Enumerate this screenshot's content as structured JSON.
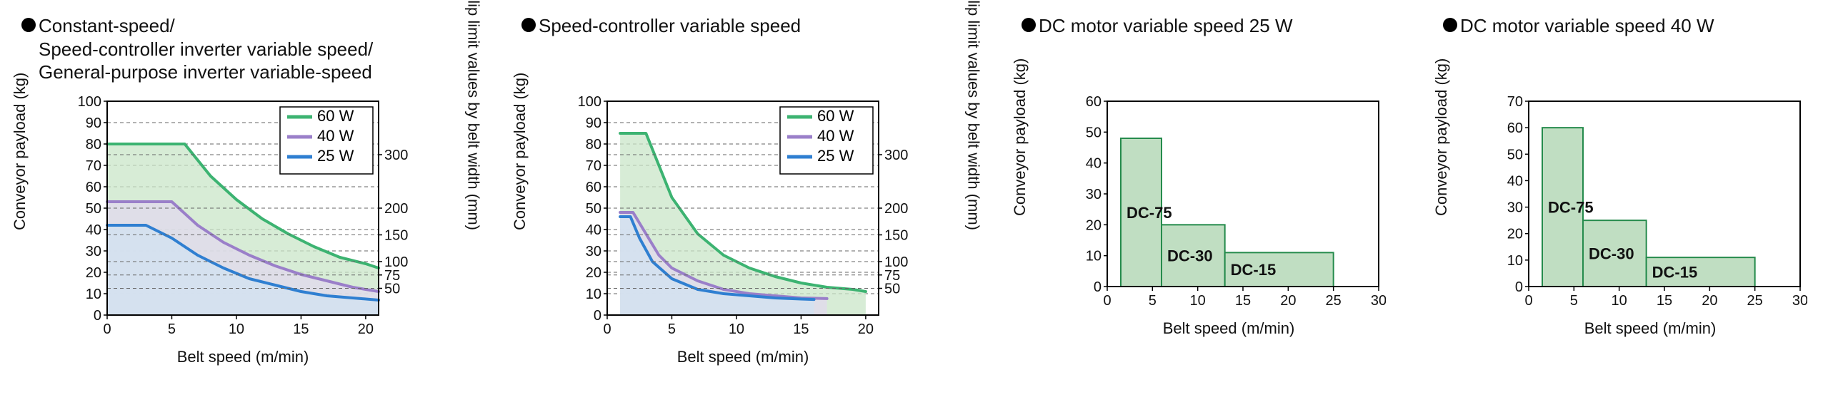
{
  "colors": {
    "series60": "#3cb371",
    "series40": "#9a7fc9",
    "series25": "#2f7fd1",
    "fill60": "#c9e6c8",
    "fill40": "#e1d9ee",
    "fill25": "#d2e2f1",
    "barFill": "#c0dec2",
    "barStroke": "#258b4c",
    "grid": "#333333",
    "gridDash": "#666666",
    "frame": "#000000",
    "bg": "#ffffff"
  },
  "commonAxes": {
    "xLabel": "Belt speed (m/min)",
    "yLabel": "Conveyor payload (kg)",
    "y2Label": "Slip limit values by belt width (mm)"
  },
  "panelA": {
    "title": "Constant-speed/\nSpeed-controller inverter variable speed/\nGeneral-purpose inverter variable-speed",
    "xlim": [
      0,
      21
    ],
    "xticks": [
      0,
      5,
      10,
      15,
      20
    ],
    "ylim": [
      0,
      100
    ],
    "yticks": [
      0,
      10,
      20,
      30,
      40,
      50,
      60,
      70,
      80,
      90,
      100
    ],
    "y2ticks": [
      50,
      75,
      100,
      150,
      200,
      300
    ],
    "y2map": {
      "50": 12.5,
      "75": 18.75,
      "100": 25,
      "150": 37.5,
      "200": 50,
      "300": 75
    },
    "legend": [
      {
        "label": "60 W",
        "color": "series60"
      },
      {
        "label": "40 W",
        "color": "series40"
      },
      {
        "label": "25 W",
        "color": "series25"
      }
    ],
    "series": [
      {
        "color": "series60",
        "fill": "fill60",
        "pts": [
          [
            0,
            80
          ],
          [
            6,
            80
          ],
          [
            8,
            65
          ],
          [
            10,
            54
          ],
          [
            12,
            45
          ],
          [
            14,
            38
          ],
          [
            16,
            32
          ],
          [
            18,
            27
          ],
          [
            20,
            24
          ],
          [
            21,
            22
          ]
        ]
      },
      {
        "color": "series40",
        "fill": "fill40",
        "pts": [
          [
            0,
            53
          ],
          [
            5,
            53
          ],
          [
            7,
            42
          ],
          [
            9,
            34
          ],
          [
            11,
            28
          ],
          [
            13,
            23
          ],
          [
            15,
            19
          ],
          [
            17,
            16
          ],
          [
            19,
            13
          ],
          [
            21,
            11
          ]
        ]
      },
      {
        "color": "series25",
        "fill": "fill25",
        "pts": [
          [
            0,
            42
          ],
          [
            3,
            42
          ],
          [
            5,
            36
          ],
          [
            7,
            28
          ],
          [
            9,
            22
          ],
          [
            11,
            17
          ],
          [
            13,
            14
          ],
          [
            15,
            11
          ],
          [
            17,
            9
          ],
          [
            19,
            8
          ],
          [
            21,
            7
          ]
        ]
      }
    ],
    "plotW": 380,
    "plotH": 300
  },
  "panelB": {
    "title": "Speed-controller variable speed",
    "xlim": [
      0,
      21
    ],
    "xticks": [
      0,
      5,
      10,
      15,
      20
    ],
    "ylim": [
      0,
      100
    ],
    "yticks": [
      0,
      10,
      20,
      30,
      40,
      50,
      60,
      70,
      80,
      90,
      100
    ],
    "y2ticks": [
      50,
      75,
      100,
      150,
      200,
      300
    ],
    "y2map": {
      "50": 12.5,
      "75": 18.75,
      "100": 25,
      "150": 37.5,
      "200": 50,
      "300": 75
    },
    "legend": [
      {
        "label": "60 W",
        "color": "series60"
      },
      {
        "label": "40 W",
        "color": "series40"
      },
      {
        "label": "25 W",
        "color": "series25"
      }
    ],
    "series": [
      {
        "color": "series60",
        "fill": "fill60",
        "pts": [
          [
            1,
            85
          ],
          [
            3,
            85
          ],
          [
            5,
            55
          ],
          [
            7,
            38
          ],
          [
            9,
            28
          ],
          [
            11,
            22
          ],
          [
            13,
            18
          ],
          [
            15,
            15
          ],
          [
            17,
            13
          ],
          [
            19,
            12
          ],
          [
            20,
            11
          ]
        ]
      },
      {
        "color": "series40",
        "fill": "fill40",
        "pts": [
          [
            1,
            48
          ],
          [
            2,
            48
          ],
          [
            3,
            38
          ],
          [
            4,
            28
          ],
          [
            5,
            22
          ],
          [
            7,
            16
          ],
          [
            9,
            12
          ],
          [
            11,
            10
          ],
          [
            13,
            9
          ],
          [
            15,
            8
          ],
          [
            17,
            7.7
          ]
        ]
      },
      {
        "color": "series25",
        "fill": "fill25",
        "pts": [
          [
            1,
            46
          ],
          [
            1.8,
            46
          ],
          [
            2.5,
            36
          ],
          [
            3.5,
            25
          ],
          [
            5,
            17
          ],
          [
            7,
            12
          ],
          [
            9,
            10
          ],
          [
            11,
            9
          ],
          [
            13,
            8
          ],
          [
            15,
            7.5
          ],
          [
            16,
            7.3
          ]
        ]
      }
    ],
    "plotW": 380,
    "plotH": 300
  },
  "panelC": {
    "title": "DC motor variable speed 25 W",
    "xlim": [
      0,
      30
    ],
    "xticks": [
      0,
      5,
      10,
      15,
      20,
      25,
      30
    ],
    "ylim": [
      0,
      60
    ],
    "yticks": [
      0,
      10,
      20,
      30,
      40,
      50,
      60
    ],
    "bars": [
      {
        "label": "DC-75",
        "x0": 1.5,
        "x1": 6,
        "y": 48
      },
      {
        "label": "DC-30",
        "x0": 6,
        "x1": 13,
        "y": 20
      },
      {
        "label": "DC-15",
        "x0": 13,
        "x1": 25,
        "y": 11
      }
    ],
    "plotW": 380,
    "plotH": 260
  },
  "panelD": {
    "title": "DC motor variable speed 40 W",
    "xlim": [
      0,
      30
    ],
    "xticks": [
      0,
      5,
      10,
      15,
      20,
      25,
      30
    ],
    "ylim": [
      0,
      70
    ],
    "yticks": [
      0,
      10,
      20,
      30,
      40,
      50,
      60,
      70
    ],
    "bars": [
      {
        "label": "DC-75",
        "x0": 1.5,
        "x1": 6,
        "y": 60
      },
      {
        "label": "DC-30",
        "x0": 6,
        "x1": 13,
        "y": 25
      },
      {
        "label": "DC-15",
        "x0": 13,
        "x1": 25,
        "y": 11
      }
    ],
    "plotW": 380,
    "plotH": 260
  }
}
